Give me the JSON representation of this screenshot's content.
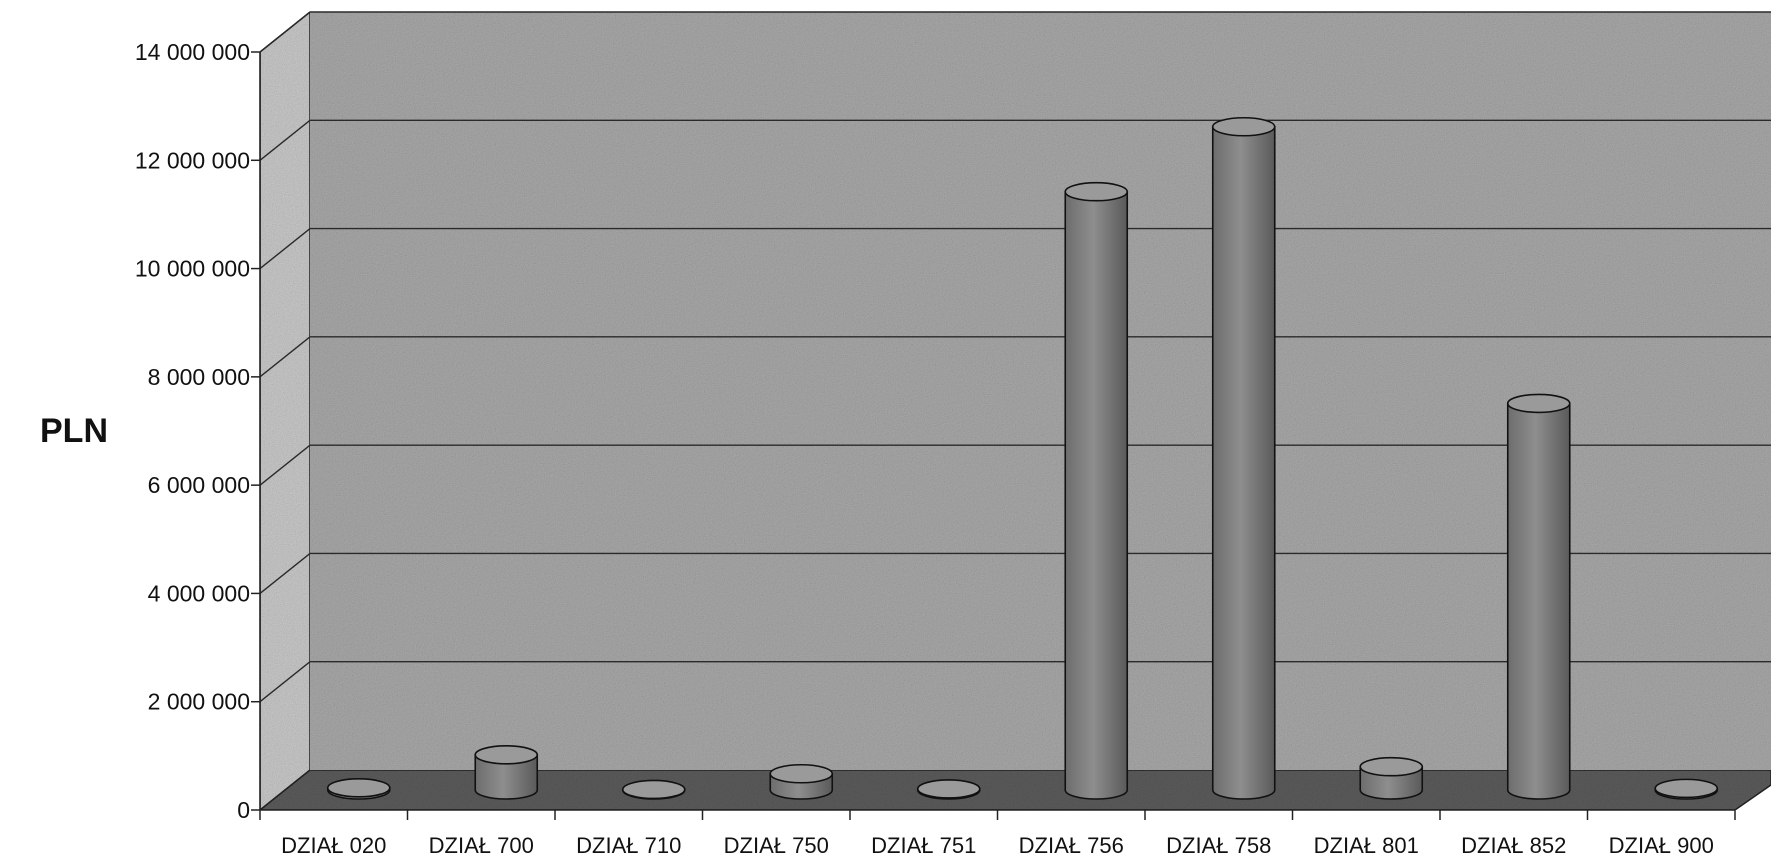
{
  "chart_data": {
    "type": "bar",
    "ylabel": "PLN",
    "ylim": [
      0,
      14000000
    ],
    "yticks": [
      0,
      2000000,
      4000000,
      6000000,
      8000000,
      10000000,
      12000000,
      14000000
    ],
    "ytick_labels": [
      "0",
      "2 000 000",
      "4 000 000",
      "6 000 000",
      "8 000 000",
      "10 000 000",
      "12 000 000",
      "14 000 000"
    ],
    "grid": true,
    "categories": [
      "DZIAŁ 020",
      "DZIAŁ 700",
      "DZIAŁ 710",
      "DZIAŁ 750",
      "DZIAŁ 751",
      "DZIAŁ 756",
      "DZIAŁ 758",
      "DZIAŁ 801",
      "DZIAŁ 852",
      "DZIAŁ 900"
    ],
    "values": [
      40000,
      650000,
      10000,
      300000,
      20000,
      11050000,
      12250000,
      430000,
      7140000,
      30000
    ]
  }
}
